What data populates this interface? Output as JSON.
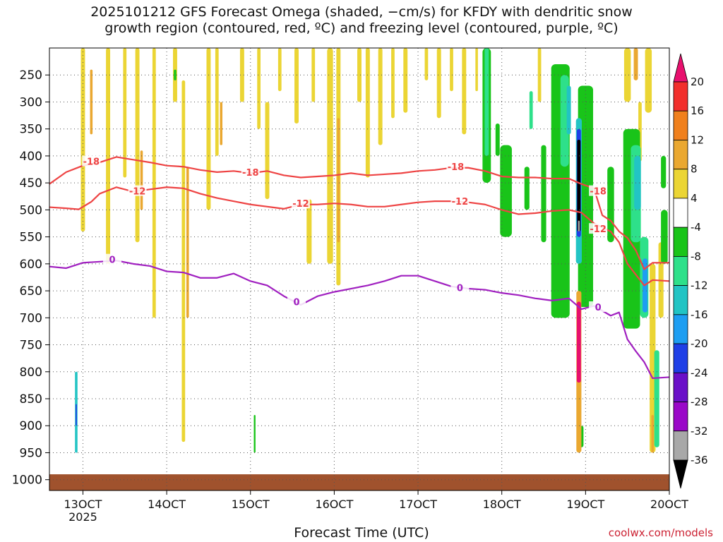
{
  "title": "2025101212 GFS Forecast Omega (shaded, −cm/s) for KFDY with dendritic snow\ngrowth region (contoured, red, ºC) and freezing level (contoured, purple, ºC)",
  "credit": "coolwx.com/models",
  "chart_data": {
    "type": "heatmap",
    "xlabel": "Forecast Time (UTC)",
    "ylabel": "",
    "x_ticks": [
      {
        "label": "13OCT",
        "sub": "2025"
      },
      {
        "label": "14OCT",
        "sub": ""
      },
      {
        "label": "15OCT",
        "sub": ""
      },
      {
        "label": "16OCT",
        "sub": ""
      },
      {
        "label": "17OCT",
        "sub": ""
      },
      {
        "label": "18OCT",
        "sub": ""
      },
      {
        "label": "19OCT",
        "sub": ""
      },
      {
        "label": "20OCT",
        "sub": ""
      }
    ],
    "xlim_days": [
      12.6,
      20.0
    ],
    "y_ticks": [
      250,
      300,
      350,
      400,
      450,
      500,
      550,
      600,
      650,
      700,
      750,
      800,
      850,
      900,
      950,
      1000
    ],
    "ylim_hpa": [
      200,
      1020
    ],
    "colorbar": {
      "labels": [
        "20",
        "16",
        "12",
        "8",
        "4",
        "-4",
        "-8",
        "-12",
        "-16",
        "-20",
        "-24",
        "-28",
        "-32",
        "-36"
      ],
      "colors": [
        "#e8106e",
        "#f22f2c",
        "#f0801d",
        "#eaa831",
        "#ebd534",
        "#ffffff",
        "#19c419",
        "#2ee08a",
        "#22c4c4",
        "#1e9ef2",
        "#1f3fe6",
        "#6a10c8",
        "#9a08c8",
        "#a8a8a8",
        "#000000"
      ]
    },
    "omega_areas": [
      {
        "day": 13.0,
        "top": 200,
        "bottom": 540,
        "width": 0.05,
        "color": "#ebd534"
      },
      {
        "day": 13.1,
        "top": 240,
        "bottom": 360,
        "width": 0.03,
        "color": "#eaa831"
      },
      {
        "day": 13.3,
        "top": 200,
        "bottom": 600,
        "width": 0.05,
        "color": "#ebd534"
      },
      {
        "day": 13.5,
        "top": 200,
        "bottom": 440,
        "width": 0.04,
        "color": "#ebd534"
      },
      {
        "day": 13.65,
        "top": 200,
        "bottom": 560,
        "width": 0.05,
        "color": "#ebd534"
      },
      {
        "day": 13.7,
        "top": 390,
        "bottom": 500,
        "width": 0.03,
        "color": "#eaa831"
      },
      {
        "day": 13.85,
        "top": 200,
        "bottom": 700,
        "width": 0.04,
        "color": "#ebd534"
      },
      {
        "day": 14.1,
        "top": 200,
        "bottom": 300,
        "width": 0.05,
        "color": "#ebd534"
      },
      {
        "day": 14.2,
        "top": 260,
        "bottom": 930,
        "width": 0.04,
        "color": "#ebd534"
      },
      {
        "day": 14.25,
        "top": 420,
        "bottom": 700,
        "width": 0.03,
        "color": "#eaa831"
      },
      {
        "day": 14.5,
        "top": 200,
        "bottom": 500,
        "width": 0.05,
        "color": "#ebd534"
      },
      {
        "day": 14.6,
        "top": 200,
        "bottom": 400,
        "width": 0.04,
        "color": "#ebd534"
      },
      {
        "day": 14.65,
        "top": 300,
        "bottom": 380,
        "width": 0.03,
        "color": "#eaa831"
      },
      {
        "day": 14.9,
        "top": 200,
        "bottom": 300,
        "width": 0.05,
        "color": "#ebd534"
      },
      {
        "day": 15.1,
        "top": 200,
        "bottom": 350,
        "width": 0.04,
        "color": "#ebd534"
      },
      {
        "day": 15.2,
        "top": 300,
        "bottom": 480,
        "width": 0.05,
        "color": "#ebd534"
      },
      {
        "day": 15.35,
        "top": 200,
        "bottom": 280,
        "width": 0.04,
        "color": "#ebd534"
      },
      {
        "day": 15.55,
        "top": 200,
        "bottom": 340,
        "width": 0.05,
        "color": "#ebd534"
      },
      {
        "day": 15.7,
        "top": 480,
        "bottom": 600,
        "width": 0.06,
        "color": "#ebd534"
      },
      {
        "day": 15.75,
        "top": 200,
        "bottom": 300,
        "width": 0.04,
        "color": "#ebd534"
      },
      {
        "day": 15.95,
        "top": 200,
        "bottom": 600,
        "width": 0.07,
        "color": "#ebd534"
      },
      {
        "day": 16.05,
        "top": 200,
        "bottom": 640,
        "width": 0.05,
        "color": "#ebd534"
      },
      {
        "day": 16.05,
        "top": 330,
        "bottom": 560,
        "width": 0.03,
        "color": "#eaa831"
      },
      {
        "day": 16.3,
        "top": 200,
        "bottom": 300,
        "width": 0.05,
        "color": "#ebd534"
      },
      {
        "day": 16.4,
        "top": 200,
        "bottom": 440,
        "width": 0.05,
        "color": "#ebd534"
      },
      {
        "day": 16.55,
        "top": 200,
        "bottom": 380,
        "width": 0.05,
        "color": "#ebd534"
      },
      {
        "day": 16.7,
        "top": 200,
        "bottom": 330,
        "width": 0.04,
        "color": "#ebd534"
      },
      {
        "day": 16.85,
        "top": 200,
        "bottom": 320,
        "width": 0.05,
        "color": "#ebd534"
      },
      {
        "day": 17.1,
        "top": 200,
        "bottom": 260,
        "width": 0.04,
        "color": "#ebd534"
      },
      {
        "day": 17.25,
        "top": 200,
        "bottom": 330,
        "width": 0.05,
        "color": "#ebd534"
      },
      {
        "day": 17.4,
        "top": 200,
        "bottom": 280,
        "width": 0.04,
        "color": "#ebd534"
      },
      {
        "day": 17.55,
        "top": 200,
        "bottom": 360,
        "width": 0.05,
        "color": "#ebd534"
      },
      {
        "day": 17.7,
        "top": 200,
        "bottom": 280,
        "width": 0.03,
        "color": "#ebd534"
      },
      {
        "day": 18.45,
        "top": 200,
        "bottom": 300,
        "width": 0.04,
        "color": "#ebd534"
      },
      {
        "day": 19.5,
        "top": 200,
        "bottom": 300,
        "width": 0.08,
        "color": "#ebd534"
      },
      {
        "day": 19.6,
        "top": 200,
        "bottom": 260,
        "width": 0.05,
        "color": "#eaa831"
      },
      {
        "day": 19.65,
        "top": 300,
        "bottom": 410,
        "width": 0.04,
        "color": "#ebd534"
      },
      {
        "day": 19.75,
        "top": 200,
        "bottom": 320,
        "width": 0.08,
        "color": "#ebd534"
      },
      {
        "day": 19.8,
        "top": 600,
        "bottom": 950,
        "width": 0.07,
        "color": "#ebd534"
      },
      {
        "day": 19.8,
        "top": 880,
        "bottom": 950,
        "width": 0.03,
        "color": "#eaa831"
      },
      {
        "day": 19.9,
        "top": 560,
        "bottom": 700,
        "width": 0.06,
        "color": "#ebd534"
      },
      {
        "day": 17.82,
        "top": 200,
        "bottom": 450,
        "width": 0.1,
        "color": "#19c419"
      },
      {
        "day": 17.82,
        "top": 200,
        "bottom": 400,
        "width": 0.05,
        "color": "#2ee08a"
      },
      {
        "day": 17.95,
        "top": 340,
        "bottom": 400,
        "width": 0.05,
        "color": "#19c419"
      },
      {
        "day": 18.05,
        "top": 380,
        "bottom": 550,
        "width": 0.14,
        "color": "#19c419"
      },
      {
        "day": 18.3,
        "top": 420,
        "bottom": 500,
        "width": 0.06,
        "color": "#19c419"
      },
      {
        "day": 18.35,
        "top": 280,
        "bottom": 350,
        "width": 0.04,
        "color": "#2ee08a"
      },
      {
        "day": 18.5,
        "top": 380,
        "bottom": 560,
        "width": 0.06,
        "color": "#19c419"
      },
      {
        "day": 18.7,
        "top": 230,
        "bottom": 700,
        "width": 0.22,
        "color": "#19c419"
      },
      {
        "day": 18.75,
        "top": 250,
        "bottom": 420,
        "width": 0.1,
        "color": "#2ee08a"
      },
      {
        "day": 18.8,
        "top": 270,
        "bottom": 360,
        "width": 0.05,
        "color": "#22c4c4"
      },
      {
        "day": 19.0,
        "top": 270,
        "bottom": 680,
        "width": 0.18,
        "color": "#19c419"
      },
      {
        "day": 18.95,
        "top": 900,
        "bottom": 940,
        "width": 0.05,
        "color": "#19c419"
      },
      {
        "day": 19.3,
        "top": 420,
        "bottom": 560,
        "width": 0.08,
        "color": "#19c419"
      },
      {
        "day": 19.55,
        "top": 350,
        "bottom": 720,
        "width": 0.2,
        "color": "#19c419"
      },
      {
        "day": 19.6,
        "top": 380,
        "bottom": 560,
        "width": 0.12,
        "color": "#2ee08a"
      },
      {
        "day": 19.62,
        "top": 400,
        "bottom": 500,
        "width": 0.08,
        "color": "#22c4c4"
      },
      {
        "day": 19.7,
        "top": 550,
        "bottom": 700,
        "width": 0.1,
        "color": "#2ee08a"
      },
      {
        "day": 19.71,
        "top": 590,
        "bottom": 690,
        "width": 0.06,
        "color": "#1e9ef2"
      },
      {
        "day": 19.85,
        "top": 760,
        "bottom": 940,
        "width": 0.06,
        "color": "#2ee08a"
      },
      {
        "day": 19.94,
        "top": 500,
        "bottom": 600,
        "width": 0.08,
        "color": "#19c419"
      },
      {
        "day": 19.93,
        "top": 400,
        "bottom": 460,
        "width": 0.06,
        "color": "#19c419"
      },
      {
        "day": 18.92,
        "top": 330,
        "bottom": 600,
        "width": 0.07,
        "color": "#22c4c4"
      },
      {
        "day": 18.92,
        "top": 350,
        "bottom": 550,
        "width": 0.05,
        "color": "#1f3fe6"
      },
      {
        "day": 18.92,
        "top": 370,
        "bottom": 540,
        "width": 0.04,
        "color": "#000000"
      },
      {
        "day": 18.92,
        "top": 520,
        "bottom": 540,
        "width": 0.02,
        "color": "#a8a8a8"
      },
      {
        "day": 18.92,
        "top": 650,
        "bottom": 950,
        "width": 0.06,
        "color": "#eaa831"
      },
      {
        "day": 18.92,
        "top": 670,
        "bottom": 820,
        "width": 0.05,
        "color": "#e8106e"
      },
      {
        "day": 12.92,
        "top": 800,
        "bottom": 950,
        "width": 0.03,
        "color": "#22c4c4"
      },
      {
        "day": 12.92,
        "top": 860,
        "bottom": 900,
        "width": 0.015,
        "color": "#1f3fe6"
      },
      {
        "day": 14.1,
        "top": 240,
        "bottom": 260,
        "width": 0.03,
        "color": "#19c419"
      },
      {
        "day": 15.05,
        "top": 880,
        "bottom": 950,
        "width": 0.02,
        "color": "#19c419"
      }
    ],
    "series": [
      {
        "name": "-18",
        "color": "#ee4444",
        "points": [
          [
            12.6,
            452
          ],
          [
            12.8,
            430
          ],
          [
            13.0,
            418
          ],
          [
            13.2,
            412
          ],
          [
            13.4,
            402
          ],
          [
            13.6,
            407
          ],
          [
            13.8,
            412
          ],
          [
            14.0,
            418
          ],
          [
            14.2,
            420
          ],
          [
            14.4,
            426
          ],
          [
            14.6,
            430
          ],
          [
            14.8,
            428
          ],
          [
            15.0,
            432
          ],
          [
            15.2,
            428
          ],
          [
            15.4,
            436
          ],
          [
            15.6,
            440
          ],
          [
            15.8,
            438
          ],
          [
            16.0,
            436
          ],
          [
            16.2,
            432
          ],
          [
            16.4,
            436
          ],
          [
            16.6,
            434
          ],
          [
            16.8,
            432
          ],
          [
            17.0,
            428
          ],
          [
            17.2,
            426
          ],
          [
            17.4,
            422
          ],
          [
            17.6,
            422
          ],
          [
            17.8,
            428
          ],
          [
            18.0,
            438
          ],
          [
            18.2,
            440
          ],
          [
            18.4,
            440
          ],
          [
            18.6,
            442
          ],
          [
            18.8,
            442
          ],
          [
            18.95,
            452
          ],
          [
            19.1,
            460
          ],
          [
            19.2,
            510
          ],
          [
            19.3,
            520
          ],
          [
            19.4,
            540
          ],
          [
            19.5,
            552
          ],
          [
            19.6,
            575
          ],
          [
            19.7,
            610
          ],
          [
            19.8,
            598
          ],
          [
            20.0,
            598
          ]
        ],
        "labels": [
          [
            13.1,
            410
          ],
          [
            15.0,
            430
          ],
          [
            17.45,
            420
          ],
          [
            19.15,
            465
          ]
        ]
      },
      {
        "name": "-12",
        "color": "#ee4444",
        "points": [
          [
            12.6,
            495
          ],
          [
            12.8,
            497
          ],
          [
            12.95,
            499
          ],
          [
            13.1,
            485
          ],
          [
            13.2,
            470
          ],
          [
            13.4,
            458
          ],
          [
            13.6,
            466
          ],
          [
            13.8,
            462
          ],
          [
            14.0,
            458
          ],
          [
            14.2,
            460
          ],
          [
            14.4,
            470
          ],
          [
            14.6,
            478
          ],
          [
            14.8,
            484
          ],
          [
            15.0,
            490
          ],
          [
            15.2,
            494
          ],
          [
            15.4,
            498
          ],
          [
            15.6,
            490
          ],
          [
            15.8,
            490
          ],
          [
            16.0,
            488
          ],
          [
            16.2,
            490
          ],
          [
            16.4,
            494
          ],
          [
            16.6,
            494
          ],
          [
            16.8,
            490
          ],
          [
            17.0,
            486
          ],
          [
            17.2,
            484
          ],
          [
            17.4,
            484
          ],
          [
            17.6,
            486
          ],
          [
            17.8,
            490
          ],
          [
            18.0,
            500
          ],
          [
            18.2,
            508
          ],
          [
            18.4,
            506
          ],
          [
            18.6,
            502
          ],
          [
            18.8,
            500
          ],
          [
            18.95,
            505
          ],
          [
            19.1,
            525
          ],
          [
            19.3,
            540
          ],
          [
            19.4,
            560
          ],
          [
            19.5,
            600
          ],
          [
            19.6,
            620
          ],
          [
            19.7,
            640
          ],
          [
            19.8,
            630
          ],
          [
            20.0,
            632
          ]
        ],
        "labels": [
          [
            13.65,
            465
          ],
          [
            15.6,
            488
          ],
          [
            17.5,
            484
          ],
          [
            19.15,
            535
          ]
        ]
      },
      {
        "name": "0",
        "color": "#a020c0",
        "points": [
          [
            12.6,
            605
          ],
          [
            12.8,
            608
          ],
          [
            13.0,
            598
          ],
          [
            13.2,
            596
          ],
          [
            13.4,
            594
          ],
          [
            13.6,
            600
          ],
          [
            13.8,
            604
          ],
          [
            14.0,
            614
          ],
          [
            14.2,
            616
          ],
          [
            14.4,
            626
          ],
          [
            14.6,
            626
          ],
          [
            14.8,
            618
          ],
          [
            15.0,
            632
          ],
          [
            15.2,
            640
          ],
          [
            15.4,
            660
          ],
          [
            15.6,
            676
          ],
          [
            15.8,
            660
          ],
          [
            16.0,
            652
          ],
          [
            16.2,
            646
          ],
          [
            16.4,
            640
          ],
          [
            16.6,
            632
          ],
          [
            16.8,
            622
          ],
          [
            17.0,
            622
          ],
          [
            17.2,
            632
          ],
          [
            17.4,
            642
          ],
          [
            17.6,
            646
          ],
          [
            17.8,
            648
          ],
          [
            18.0,
            654
          ],
          [
            18.2,
            658
          ],
          [
            18.4,
            664
          ],
          [
            18.6,
            668
          ],
          [
            18.8,
            664
          ],
          [
            18.95,
            684
          ],
          [
            19.1,
            678
          ],
          [
            19.3,
            696
          ],
          [
            19.4,
            690
          ],
          [
            19.5,
            740
          ],
          [
            19.6,
            762
          ],
          [
            19.7,
            782
          ],
          [
            19.8,
            812
          ],
          [
            20.0,
            810
          ]
        ],
        "labels": [
          [
            13.35,
            592
          ],
          [
            15.55,
            670
          ],
          [
            17.5,
            644
          ],
          [
            19.15,
            680
          ]
        ]
      }
    ]
  }
}
